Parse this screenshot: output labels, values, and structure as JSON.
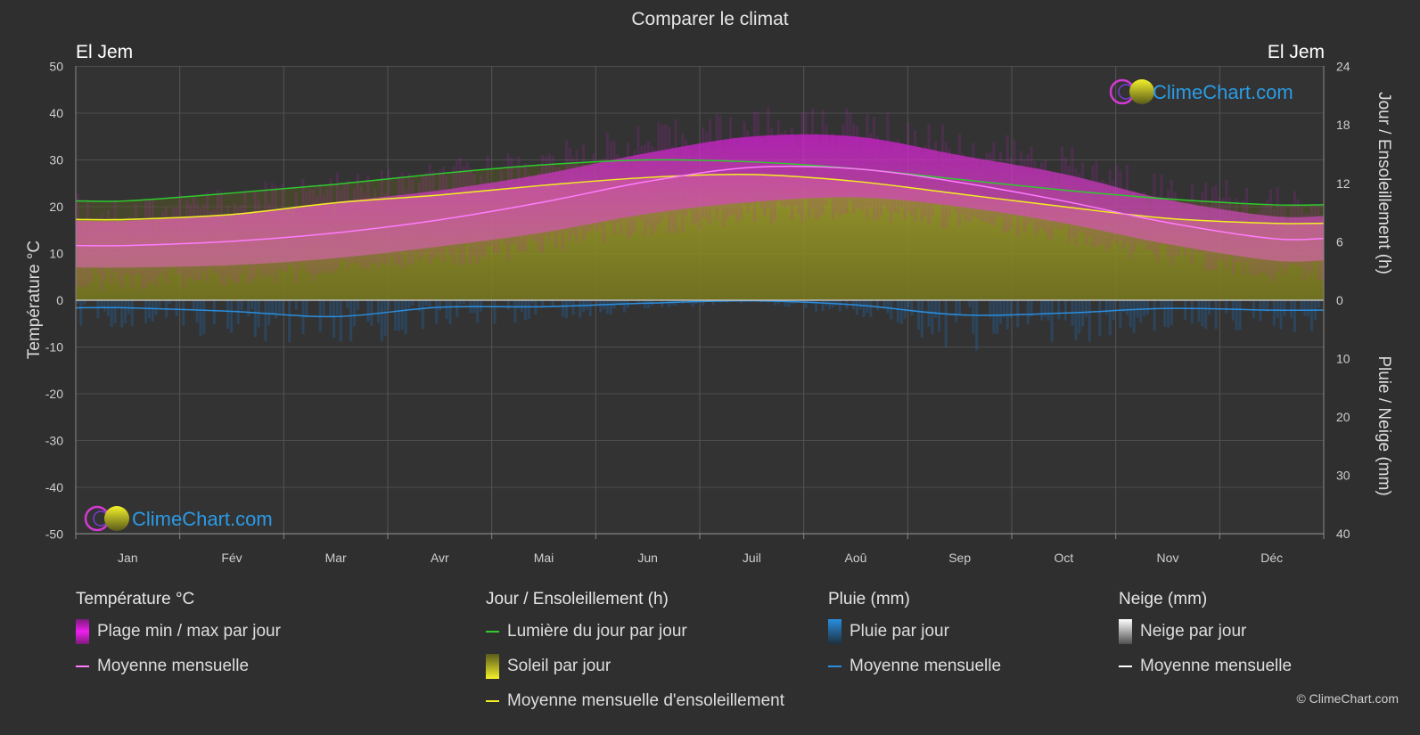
{
  "header": {
    "title": "Comparer le climat",
    "location_left": "El Jem",
    "location_right": "El Jem"
  },
  "watermark": {
    "text": "ClimeChart.com",
    "copyright": "© ClimeChart.com"
  },
  "colors": {
    "background": "#2f2f2f",
    "temp_range": "#d21ed2",
    "temp_mean": "#ff7cff",
    "daylight": "#2ecc2e",
    "sunshine_fill": "#9a9a28",
    "sunshine_mean": "#f2f020",
    "rain": "#1e78c8",
    "rain_mean": "#2a8ee0",
    "snow_mean": "#ffffff",
    "logo_blue": "#2a9be6"
  },
  "legend": {
    "temperature": {
      "title": "Température °C",
      "items": [
        {
          "label": "Plage min / max par jour",
          "icon": "temp-range-swatch"
        },
        {
          "label": "Moyenne mensuelle",
          "icon": "temp-mean-line"
        }
      ]
    },
    "sun": {
      "title": "Jour / Ensoleillement (h)",
      "items": [
        {
          "label": "Lumière du jour par jour",
          "icon": "daylight-line"
        },
        {
          "label": "Soleil par jour",
          "icon": "sunshine-swatch"
        },
        {
          "label": "Moyenne mensuelle d'ensoleillement",
          "icon": "sunshine-mean-line"
        }
      ]
    },
    "rain": {
      "title": "Pluie (mm)",
      "items": [
        {
          "label": "Pluie par jour",
          "icon": "rain-swatch"
        },
        {
          "label": "Moyenne mensuelle",
          "icon": "rain-mean-line"
        }
      ]
    },
    "snow": {
      "title": "Neige (mm)",
      "items": [
        {
          "label": "Neige par jour",
          "icon": "snow-swatch"
        },
        {
          "label": "Moyenne mensuelle",
          "icon": "snow-mean-line"
        }
      ]
    }
  },
  "chart_data": {
    "type": "area",
    "categories": [
      "Jan",
      "Fév",
      "Mar",
      "Avr",
      "Mai",
      "Jun",
      "Juil",
      "Aoû",
      "Sep",
      "Oct",
      "Nov",
      "Déc"
    ],
    "axes": {
      "y_left": {
        "label": "Température °C",
        "range": [
          -50,
          50
        ],
        "ticks": [
          50,
          40,
          30,
          20,
          10,
          0,
          -10,
          -20,
          -30,
          -40,
          -50
        ]
      },
      "y_right_top": {
        "label": "Jour / Ensoleillement (h)",
        "range": [
          0,
          24
        ],
        "ticks": [
          24,
          18,
          12,
          6,
          0
        ]
      },
      "y_right_bottom": {
        "label": "Pluie / Neige (mm)",
        "range": [
          0,
          40
        ],
        "ticks": [
          10,
          20,
          30,
          40
        ]
      }
    },
    "grid": true,
    "series": [
      {
        "name": "Plage min / max par jour",
        "unit": "°C",
        "kind": "range",
        "min": [
          7,
          7.5,
          9,
          11.5,
          14.5,
          18.5,
          21,
          22,
          20,
          16.5,
          12,
          8.5
        ],
        "max": [
          17,
          18.5,
          21,
          23.5,
          27,
          31.5,
          35,
          35,
          31,
          27,
          21.5,
          18
        ]
      },
      {
        "name": "Moyenne mensuelle",
        "unit": "°C",
        "values": [
          11.7,
          12.6,
          14.4,
          17.2,
          21.0,
          25.4,
          28.4,
          28.1,
          25.2,
          21.2,
          16.6,
          13.2
        ]
      },
      {
        "name": "Lumière du jour par jour",
        "unit": "h",
        "values": [
          10.2,
          11.0,
          11.9,
          13.0,
          13.9,
          14.4,
          14.2,
          13.5,
          12.4,
          11.3,
          10.4,
          9.8
        ]
      },
      {
        "name": "Soleil par jour",
        "unit": "h",
        "values": [
          8.3,
          8.8,
          10.0,
          10.8,
          11.8,
          12.6,
          12.9,
          12.2,
          10.9,
          9.6,
          8.4,
          7.9
        ]
      },
      {
        "name": "Moyenne mensuelle d'ensoleillement",
        "unit": "h",
        "values": [
          8.3,
          8.8,
          10.0,
          10.8,
          11.8,
          12.6,
          12.9,
          12.2,
          10.9,
          9.6,
          8.4,
          7.9
        ]
      },
      {
        "name": "Pluie par jour",
        "unit": "mm",
        "kind": "bars",
        "values": [
          1.3,
          1.9,
          2.8,
          1.2,
          1.1,
          0.5,
          0.1,
          0.8,
          2.5,
          2.2,
          1.4,
          1.7
        ]
      },
      {
        "name": "Moyenne mensuelle",
        "unit": "mm",
        "values": [
          1.3,
          1.9,
          2.8,
          1.2,
          1.1,
          0.5,
          0.1,
          0.8,
          2.5,
          2.2,
          1.4,
          1.7
        ]
      },
      {
        "name": "Neige par jour",
        "unit": "mm",
        "values": [
          0,
          0,
          0,
          0,
          0,
          0,
          0,
          0,
          0,
          0,
          0,
          0
        ]
      },
      {
        "name": "Moyenne mensuelle",
        "unit": "mm",
        "values": [
          0,
          0,
          0,
          0,
          0,
          0,
          0,
          0,
          0,
          0,
          0,
          0
        ]
      }
    ]
  }
}
